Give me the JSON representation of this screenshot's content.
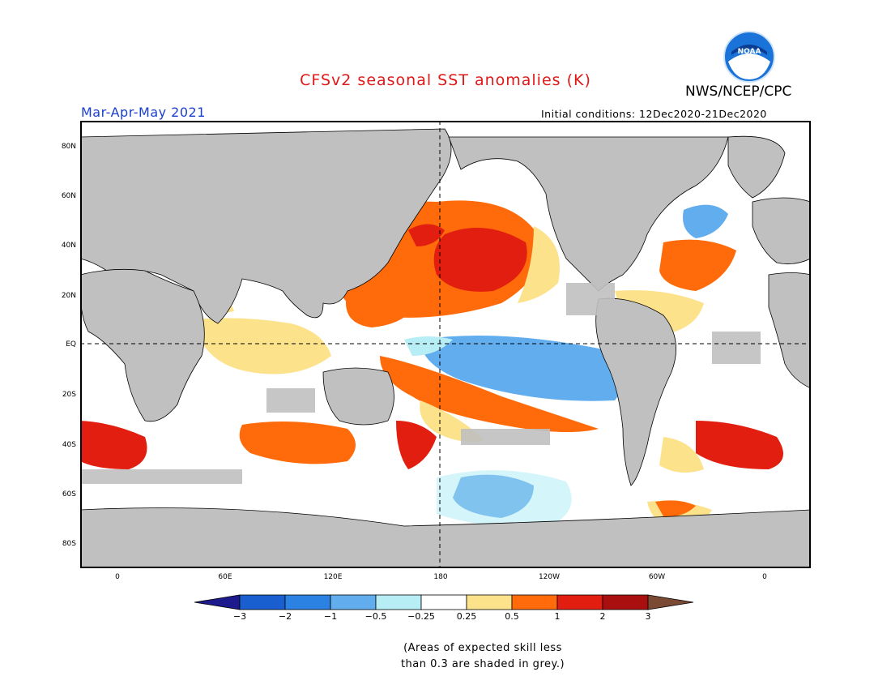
{
  "header": {
    "title": "CFSv2 seasonal SST anomalies (K)",
    "agency": "NWS/NCEP/CPC",
    "logo_text": "NOAA",
    "season": "Mar-Apr-May 2021",
    "initial_conditions": "Initial conditions: 12Dec2020-21Dec2020"
  },
  "colors": {
    "title": "#e01818",
    "season": "#1a3fd0",
    "land": "#c0c0c0",
    "ocean_neutral": "#ffffff"
  },
  "map": {
    "lat_labels": [
      "80N",
      "60N",
      "40N",
      "20N",
      "EQ",
      "20S",
      "40S",
      "60S",
      "80S"
    ],
    "lon_labels": [
      "0",
      "60E",
      "120E",
      "180",
      "120W",
      "60W",
      "0"
    ]
  },
  "colorbar": {
    "ticks": [
      "-3",
      "-2",
      "-1",
      "-0.5",
      "-0.25",
      "0.25",
      "0.5",
      "1",
      "2",
      "3"
    ],
    "colors": [
      "#1c1a8c",
      "#1a5fcf",
      "#2c82e2",
      "#61adee",
      "#b7eef6",
      "#ffffff",
      "#fde28c",
      "#ff6a0a",
      "#e11e10",
      "#a90f0f",
      "#7a4a35"
    ]
  },
  "note": [
    "(Areas of expected skill less",
    "than 0.3 are shaded in grey.)"
  ]
}
